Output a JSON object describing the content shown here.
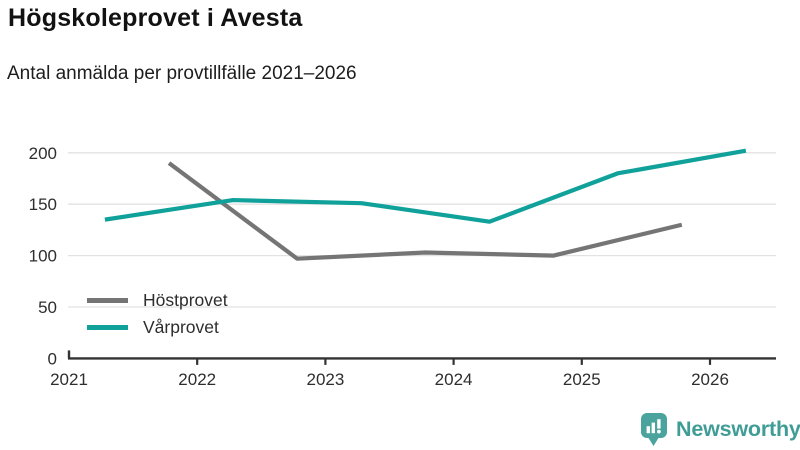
{
  "header": {
    "title": "Högskoleprovet i Avesta",
    "subtitle": "Antal anmälda per provtillfälle 2021–2026"
  },
  "chart_data": {
    "type": "line",
    "title": "Högskoleprovet i Avesta",
    "subtitle": "Antal anmälda per provtillfälle 2021–2026",
    "x": [
      2021,
      2022,
      2023,
      2024,
      2025,
      2026
    ],
    "x_tick_labels": [
      "2021",
      "2022",
      "2023",
      "2024",
      "2025",
      "2026"
    ],
    "y_ticks": [
      0,
      50,
      100,
      150,
      200
    ],
    "y_tick_labels": [
      "0",
      "50",
      "100",
      "150",
      "200"
    ],
    "xlim": [
      2021,
      2026.52
    ],
    "ylim": [
      0,
      206
    ],
    "grid": "horizontal",
    "legend_position": "inside-bottom-left",
    "series": [
      {
        "name": "Höstprovet",
        "color": "#757575",
        "x_offset": 0.78,
        "years": [
          2021,
          2022,
          2023,
          2024,
          2025
        ],
        "values": [
          190,
          97,
          103,
          100,
          130
        ]
      },
      {
        "name": "Vårprovet",
        "color": "#10a29a",
        "x_offset": 0.28,
        "years": [
          2021,
          2022,
          2023,
          2024,
          2025,
          2026
        ],
        "values": [
          135,
          154,
          151,
          133,
          180,
          202
        ]
      }
    ]
  },
  "colors": {
    "grid": "#e2e2e2",
    "axis": "#333333",
    "tick_text": "#2e2e2e",
    "title_text": "#121212"
  },
  "branding": {
    "logo_text": "Newsworthy",
    "logo_icon": "bar-chart-speech-bubble",
    "icon_color": "#4aa39c",
    "icon_glyph_color": "#ffffff",
    "text_color": "#3f9d96"
  }
}
